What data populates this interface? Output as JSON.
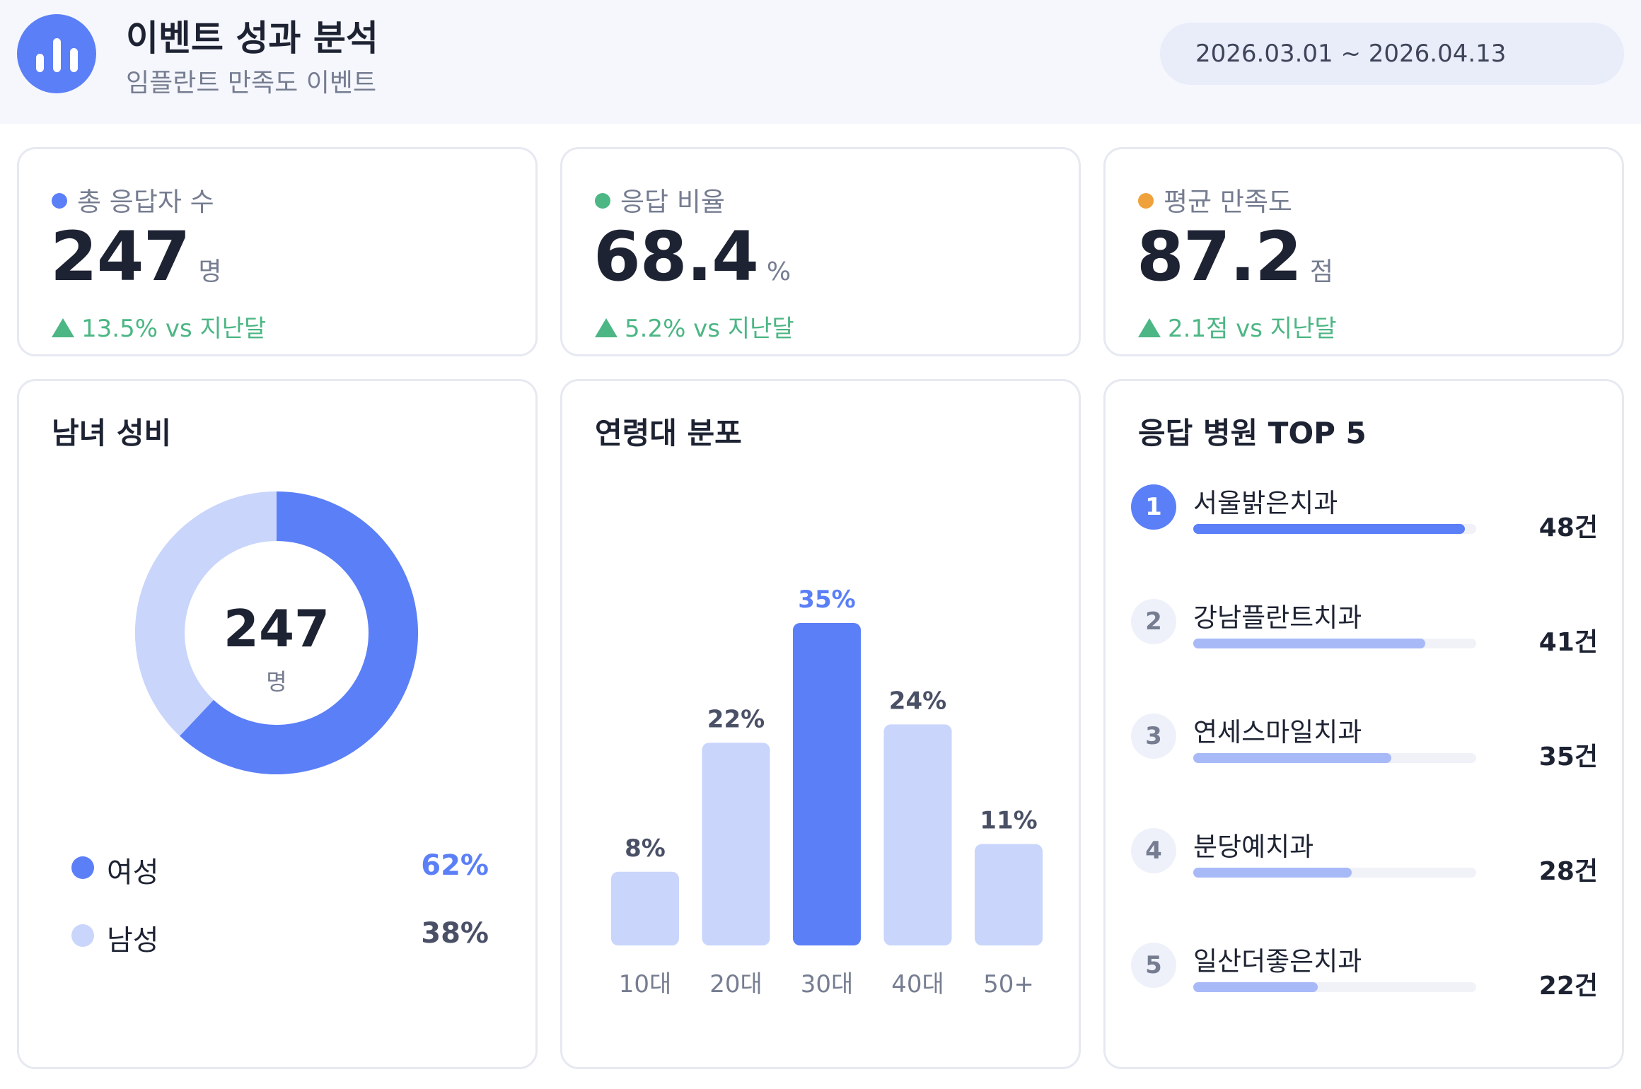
{
  "header": {
    "title": "이벤트 성과 분석",
    "subtitle": "임플란트 만족도 이벤트",
    "date_range": "2026.03.01 ~ 2026.04.13",
    "logo_icon": "bar-chart-icon"
  },
  "colors": {
    "primary": "#5b7ff7",
    "primary_light": "#c9d5fb",
    "green": "#4cb684",
    "orange": "#efa23b",
    "text_muted": "#767d91"
  },
  "stats": [
    {
      "label": "총 응답자 수",
      "value": "247",
      "unit": "명",
      "change": "13.5% vs 지난달",
      "dot_color": "#5b7ff7"
    },
    {
      "label": "응답 비율",
      "value": "68.4",
      "unit": "%",
      "change": "5.2% vs 지난달",
      "dot_color": "#4cb684"
    },
    {
      "label": "평균 만족도",
      "value": "87.2",
      "unit": "점",
      "change": "2.1점 vs 지난달",
      "dot_color": "#efa23b"
    }
  ],
  "gender": {
    "title": "남녀 성비",
    "center_value": "247",
    "center_unit": "명",
    "items": [
      {
        "name": "여성",
        "percent_label": "62%",
        "value": 62,
        "color": "#5b7ff7",
        "label_color": "#5b7ff7"
      },
      {
        "name": "남성",
        "percent_label": "38%",
        "value": 38,
        "color": "#c9d5fb",
        "label_color": "#4a5066"
      }
    ]
  },
  "age": {
    "title": "연령대 분포"
  },
  "hospitals": {
    "title": "응답 병원 TOP 5",
    "items": [
      {
        "rank": "1",
        "name": "서울밝은치과",
        "count_label": "48건",
        "count": 48
      },
      {
        "rank": "2",
        "name": "강남플란트치과",
        "count_label": "41건",
        "count": 41
      },
      {
        "rank": "3",
        "name": "연세스마일치과",
        "count_label": "35건",
        "count": 35
      },
      {
        "rank": "4",
        "name": "분당예치과",
        "count_label": "28건",
        "count": 28
      },
      {
        "rank": "5",
        "name": "일산더좋은치과",
        "count_label": "22건",
        "count": 22
      }
    ]
  },
  "chart_data": [
    {
      "type": "pie",
      "title": "남녀 성비",
      "categories": [
        "여성",
        "남성"
      ],
      "values": [
        62,
        38
      ],
      "unit": "%"
    },
    {
      "type": "bar",
      "title": "연령대 분포",
      "categories": [
        "10대",
        "20대",
        "30대",
        "40대",
        "50+"
      ],
      "values": [
        8,
        22,
        35,
        24,
        11
      ],
      "value_labels": [
        "8%",
        "22%",
        "35%",
        "24%",
        "11%"
      ],
      "highlight_index": 2,
      "ylim": [
        0,
        35
      ],
      "grid": false
    },
    {
      "type": "bar",
      "orientation": "horizontal",
      "title": "응답 병원 TOP 5",
      "categories": [
        "서울밝은치과",
        "강남플란트치과",
        "연세스마일치과",
        "분당예치과",
        "일산더좋은치과"
      ],
      "values": [
        48,
        41,
        35,
        28,
        22
      ],
      "xlim": [
        0,
        48
      ]
    }
  ]
}
